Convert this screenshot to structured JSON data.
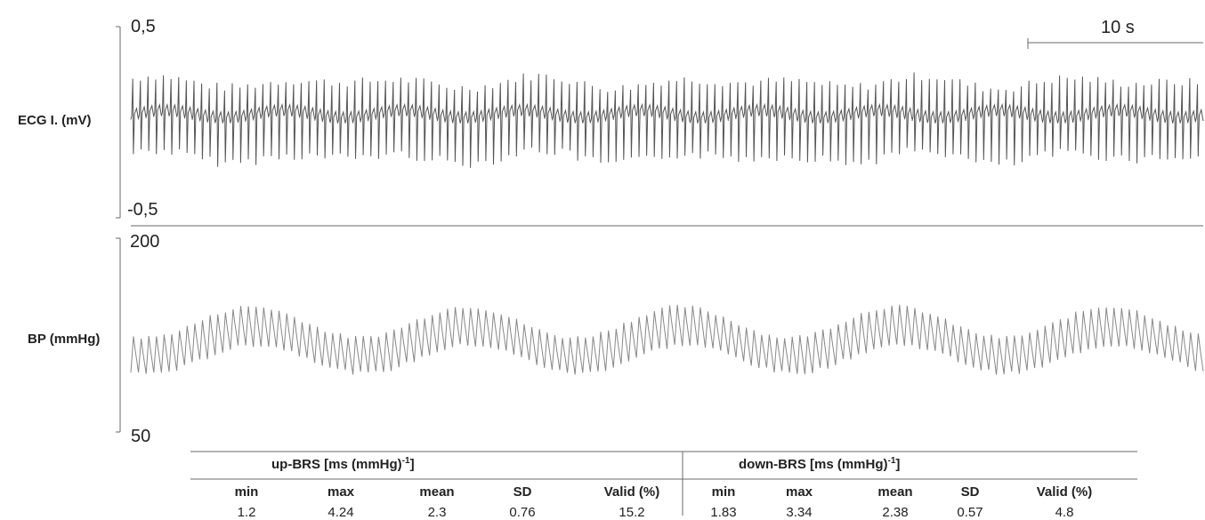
{
  "chart_data": [
    {
      "type": "line",
      "channel_label": "ECG I. (mV)",
      "y_ticks": [
        "0,5",
        "-0,5"
      ],
      "ylim": [
        -0.5,
        0.5
      ],
      "approx_beats": 140,
      "r_peak_range_mv": [
        0.14,
        0.26
      ],
      "s_trough_range_mv": [
        -0.27,
        -0.14
      ],
      "color": "#555555"
    },
    {
      "type": "line",
      "channel_label": "BP (mmHg)",
      "y_ticks": [
        "200",
        "50"
      ],
      "ylim": [
        50,
        200
      ],
      "approx_beats": 140,
      "systolic_range_mmhg": [
        126,
        150
      ],
      "diastolic_range_mmhg": [
        98,
        120
      ],
      "slow_wave_cycles": 5,
      "color": "#888888"
    }
  ],
  "scale_bar": {
    "label": "10 s"
  },
  "stats_table": {
    "columns": [
      "min",
      "max",
      "mean",
      "SD",
      "Valid (%)"
    ],
    "groups": [
      {
        "title": "up-BRS [ms (mmHg)",
        "title_sup": "-1",
        "title_end": "]",
        "values": [
          "1.2",
          "4.24",
          "2.3",
          "0.76",
          "15.2"
        ]
      },
      {
        "title": "down-BRS [ms (mmHg)",
        "title_sup": "-1",
        "title_end": "]",
        "values": [
          "1.83",
          "3.34",
          "2.38",
          "0.57",
          "4.8"
        ]
      }
    ]
  }
}
